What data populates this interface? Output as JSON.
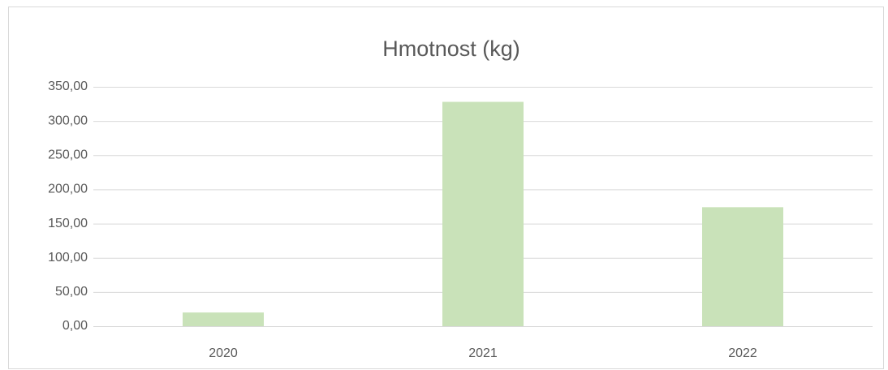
{
  "chart_data": {
    "type": "bar",
    "title": "Hmotnost (kg)",
    "categories": [
      "2020",
      "2021",
      "2022"
    ],
    "values": [
      20,
      328,
      174
    ],
    "color": "#c9e2b9",
    "ylim": [
      0,
      350
    ],
    "yticks": [
      {
        "value": 0,
        "label": "0,00"
      },
      {
        "value": 50,
        "label": "50,00"
      },
      {
        "value": 100,
        "label": "100,00"
      },
      {
        "value": 150,
        "label": "150,00"
      },
      {
        "value": 200,
        "label": "200,00"
      },
      {
        "value": 250,
        "label": "250,00"
      },
      {
        "value": 300,
        "label": "300,00"
      },
      {
        "value": 350,
        "label": "350,00"
      }
    ],
    "grid": true
  }
}
